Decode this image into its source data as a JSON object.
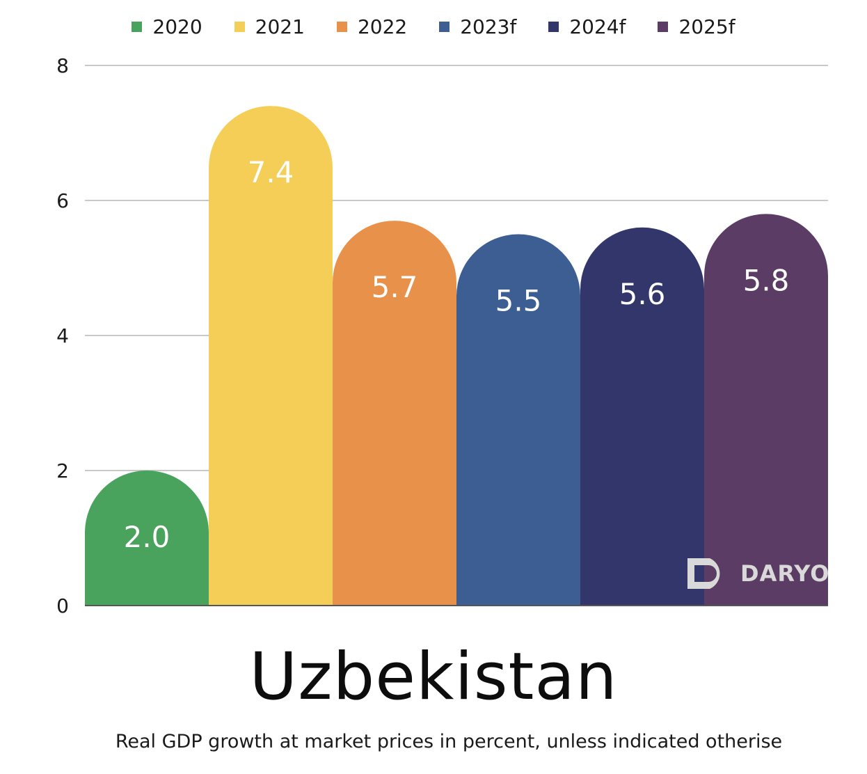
{
  "chart_data": {
    "type": "bar",
    "title": "Uzbekistan",
    "subtitle": "Real GDP growth at market prices in percent, unless indicated otherise",
    "categories": [
      "2020",
      "2021",
      "2022",
      "2023f",
      "2024f",
      "2025f"
    ],
    "values": [
      2.0,
      7.4,
      5.7,
      5.5,
      5.6,
      5.8
    ],
    "value_labels": [
      "2.0",
      "7.4",
      "5.7",
      "5.5",
      "5.6",
      "5.8"
    ],
    "colors": [
      "#4aa35c",
      "#f5ce57",
      "#e8914b",
      "#3c5e92",
      "#32366a",
      "#5b3c64"
    ],
    "ylim": [
      0,
      8
    ],
    "yticks": [
      0,
      2,
      4,
      6,
      8
    ],
    "ytick_labels": [
      "0",
      "2",
      "4",
      "6",
      "8"
    ],
    "grid": true,
    "legend_position": "top-center",
    "xlabel": "",
    "ylabel": ""
  },
  "watermark": {
    "text": "DARYO",
    "icon": "daryo-logo-icon"
  }
}
